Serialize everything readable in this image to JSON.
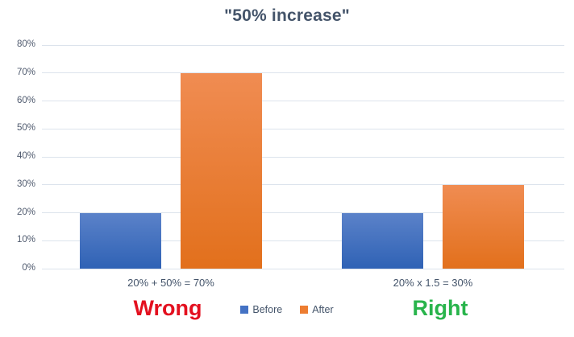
{
  "title": "\"50% increase\"",
  "annotations": {
    "wrong_label": "Wrong",
    "right_label": "Right"
  },
  "colors": {
    "title_text": "#44546A",
    "axis_tick_text": "#4F5A6E",
    "category_text": "#44546A",
    "legend_text": "#44546A",
    "gridline": "#DCE3EC",
    "wrong_text": "#E3101F",
    "right_text": "#28B44B"
  },
  "chart_data": {
    "type": "bar",
    "title": "\"50% increase\"",
    "categories": [
      "20% + 50% = 70%",
      "20% x 1.5 = 30%"
    ],
    "series": [
      {
        "name": "Before",
        "values": [
          20,
          20
        ],
        "color": "#4472C4",
        "gradient_top": "#5B82C9",
        "gradient_bottom": "#2F62B5"
      },
      {
        "name": "After",
        "values": [
          70,
          30
        ],
        "color": "#ED7D31",
        "gradient_top": "#F08C52",
        "gradient_bottom": "#E2701C"
      }
    ],
    "xlabel": "",
    "ylabel": "",
    "ylim": [
      0,
      80
    ],
    "ytick_step": 10,
    "ytick_suffix": "%",
    "grid": true,
    "legend_position": "bottom"
  }
}
